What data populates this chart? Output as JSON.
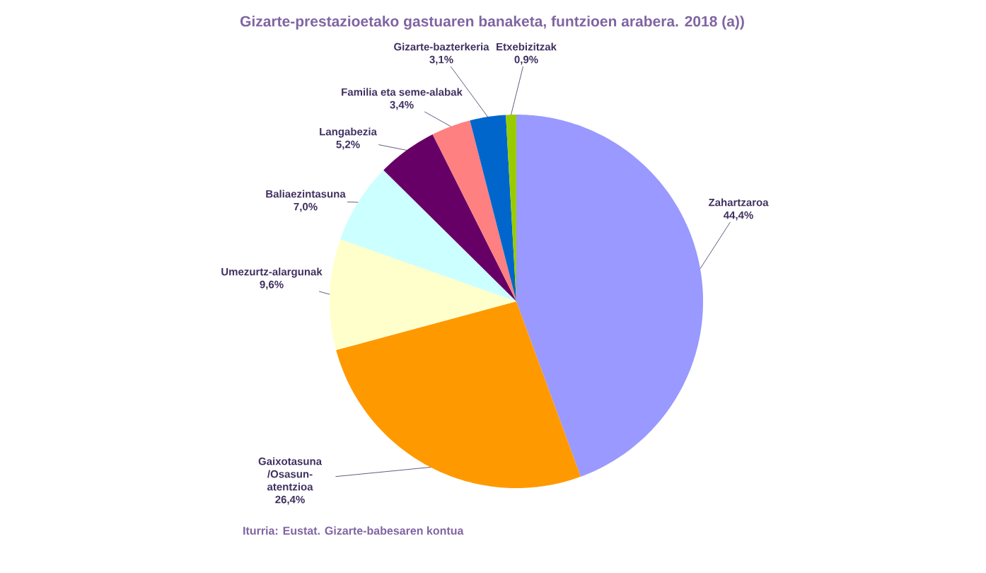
{
  "chart_data": {
    "type": "pie",
    "title": "Gizarte-prestazioetako gastuaren banaketa, funtzioen arabera. 2018 (a))",
    "categories": [
      "Zahartzaroa",
      "Gaixotasuna /Osasun-atentzioa",
      "Umezurtz-alargunak",
      "Baliaezintasuna",
      "Langabezia",
      "Familia eta seme-alabak",
      "Gizarte-bazterkeria",
      "Etxebizitzak"
    ],
    "values": [
      44.4,
      26.4,
      9.6,
      7.0,
      5.2,
      3.4,
      3.1,
      0.9
    ],
    "value_labels": [
      "44,4%",
      "26,4%",
      "9,6%",
      "7,0%",
      "5,2%",
      "3,4%",
      "3,1%",
      "0,9%"
    ],
    "colors": [
      "#9999ff",
      "#ff9900",
      "#ffffcc",
      "#ccffff",
      "#660066",
      "#ff8080",
      "#0066cc",
      "#99cc00"
    ],
    "annotations": [
      "Iturria: Eustat. Gizarte-babesaren kontua"
    ]
  }
}
